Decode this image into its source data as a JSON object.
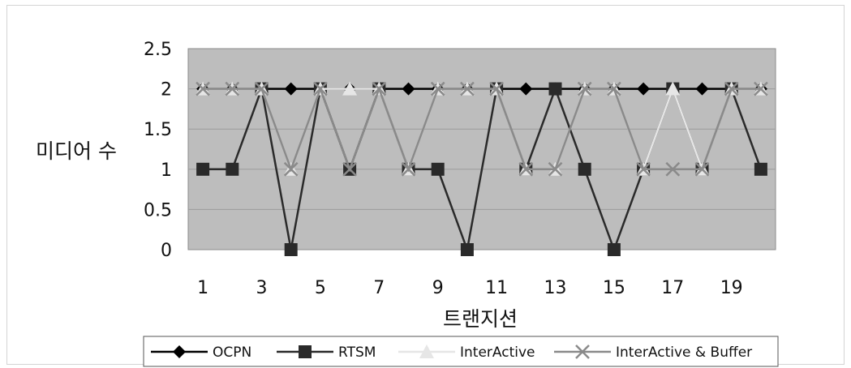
{
  "chart_data": {
    "type": "line",
    "title": "",
    "xlabel": "트랜지션",
    "ylabel": "미디어 수",
    "ylim": [
      0,
      2.5
    ],
    "yticks": [
      "0",
      "0.5",
      "1",
      "1.5",
      "2",
      "2.5"
    ],
    "x": [
      1,
      2,
      3,
      4,
      5,
      6,
      7,
      8,
      9,
      10,
      11,
      12,
      13,
      14,
      15,
      16,
      17,
      18,
      19,
      20
    ],
    "xtick_labels": [
      "1",
      "3",
      "5",
      "7",
      "9",
      "11",
      "13",
      "15",
      "17",
      "19"
    ],
    "xtick_values": [
      1,
      3,
      5,
      7,
      9,
      11,
      13,
      15,
      17,
      19
    ],
    "grid": true,
    "legend_position": "bottom",
    "plot_background": "#bdbdbd",
    "series": [
      {
        "name": "OCPN",
        "marker": "diamond",
        "color": "#000000",
        "values": [
          2,
          2,
          2,
          2,
          2,
          2,
          2,
          2,
          2,
          2,
          2,
          2,
          2,
          2,
          2,
          2,
          2,
          2,
          2,
          2
        ]
      },
      {
        "name": "RTSM",
        "marker": "square",
        "color": "#2a2a2a",
        "values": [
          1,
          1,
          2,
          0,
          2,
          1,
          2,
          1,
          1,
          0,
          2,
          1,
          2,
          1,
          0,
          1,
          2,
          1,
          2,
          1
        ]
      },
      {
        "name": "InterActive",
        "marker": "triangle",
        "color": "#e6e6e6",
        "values": [
          2,
          2,
          2,
          1,
          2,
          2,
          2,
          1,
          2,
          2,
          2,
          1,
          1,
          2,
          2,
          1,
          2,
          1,
          2,
          2
        ]
      },
      {
        "name": "InterActive & Buffer",
        "marker": "x",
        "color": "#8a8a8a",
        "values": [
          2,
          2,
          2,
          1,
          2,
          1,
          2,
          1,
          2,
          2,
          2,
          1,
          1,
          2,
          2,
          1,
          1,
          1,
          2,
          2
        ]
      }
    ]
  }
}
